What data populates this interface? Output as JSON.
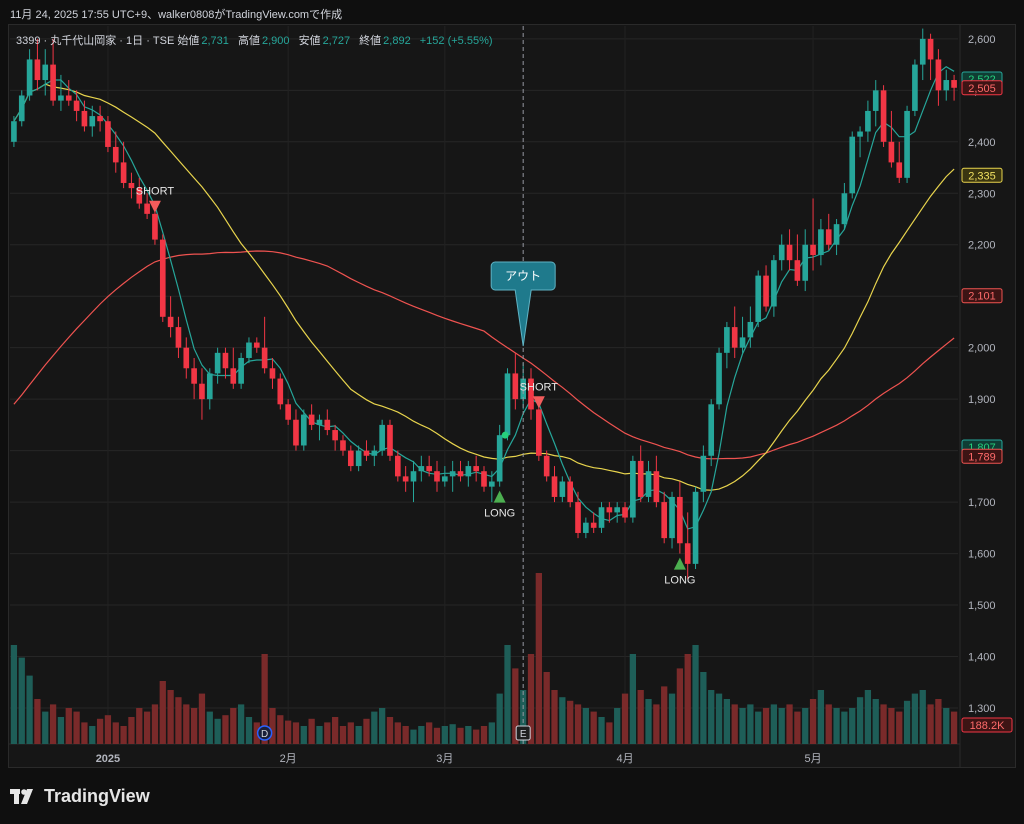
{
  "header": {
    "timestamp_line": "11月 24, 2025 17:55 UTC+9、walker0808がTradingView.comで作成"
  },
  "legend": {
    "symbol": "3399 · 丸千代山岡家 · 1日 · TSE",
    "open_label": "始値",
    "open": "2,731",
    "high_label": "高値",
    "high": "2,900",
    "low_label": "安値",
    "low": "2,727",
    "close_label": "終値",
    "close": "2,892",
    "change": "+152 (+5.55%)"
  },
  "brand": {
    "name": "TradingView"
  },
  "colors": {
    "up": "#26a69a",
    "down": "#f23645",
    "ma_fast": "#26a69a",
    "ma_mid": "#e8d44d",
    "ma_slow": "#ef5350",
    "vol_up": "#1e5e58",
    "vol_down": "#7a2a2a",
    "callout": "#1f7a8c"
  },
  "chart_data": {
    "type": "candlestick",
    "y_axis": {
      "range": [
        1230,
        2625
      ],
      "ticks": [
        1300,
        1400,
        1500,
        1600,
        1700,
        1800,
        1900,
        2000,
        2100,
        2200,
        2300,
        2400,
        2500,
        2600
      ],
      "tick_labels": [
        "1,300",
        "1,400",
        "1,500",
        "1,600",
        "1,700",
        "1,800",
        "1,900",
        "2,000",
        "2,100",
        "2,200",
        "2,300",
        "2,400",
        "2,500",
        "2,600"
      ]
    },
    "x_axis": {
      "labels": [
        {
          "label": "2025",
          "index": 12
        },
        {
          "label": "2月",
          "index": 35
        },
        {
          "label": "3月",
          "index": 55
        },
        {
          "label": "4月",
          "index": 78
        },
        {
          "label": "5月",
          "index": 102
        }
      ]
    },
    "candles": [
      [
        2400,
        2450,
        2390,
        2440
      ],
      [
        2440,
        2500,
        2430,
        2490
      ],
      [
        2490,
        2580,
        2480,
        2560
      ],
      [
        2560,
        2600,
        2500,
        2520
      ],
      [
        2520,
        2580,
        2490,
        2550
      ],
      [
        2550,
        2600,
        2470,
        2480
      ],
      [
        2480,
        2530,
        2460,
        2490
      ],
      [
        2490,
        2520,
        2470,
        2480
      ],
      [
        2480,
        2500,
        2440,
        2460
      ],
      [
        2460,
        2480,
        2420,
        2430
      ],
      [
        2430,
        2470,
        2410,
        2450
      ],
      [
        2450,
        2470,
        2420,
        2440
      ],
      [
        2440,
        2450,
        2380,
        2390
      ],
      [
        2390,
        2420,
        2340,
        2360
      ],
      [
        2360,
        2400,
        2310,
        2320
      ],
      [
        2320,
        2340,
        2290,
        2310
      ],
      [
        2310,
        2330,
        2270,
        2280
      ],
      [
        2280,
        2300,
        2250,
        2260
      ],
      [
        2260,
        2270,
        2200,
        2210
      ],
      [
        2210,
        2220,
        2050,
        2060
      ],
      [
        2060,
        2100,
        2020,
        2040
      ],
      [
        2040,
        2060,
        1980,
        2000
      ],
      [
        2000,
        2020,
        1940,
        1960
      ],
      [
        1960,
        1980,
        1900,
        1930
      ],
      [
        1930,
        1960,
        1860,
        1900
      ],
      [
        1900,
        1960,
        1880,
        1950
      ],
      [
        1950,
        2000,
        1930,
        1990
      ],
      [
        1990,
        2000,
        1940,
        1960
      ],
      [
        1960,
        2000,
        1920,
        1930
      ],
      [
        1930,
        1990,
        1920,
        1980
      ],
      [
        1980,
        2020,
        1970,
        2010
      ],
      [
        2010,
        2020,
        1990,
        2000
      ],
      [
        2000,
        2060,
        1950,
        1960
      ],
      [
        1960,
        1980,
        1920,
        1940
      ],
      [
        1940,
        1950,
        1880,
        1890
      ],
      [
        1890,
        1900,
        1850,
        1860
      ],
      [
        1860,
        1880,
        1800,
        1810
      ],
      [
        1810,
        1880,
        1800,
        1870
      ],
      [
        1870,
        1890,
        1840,
        1850
      ],
      [
        1850,
        1870,
        1820,
        1860
      ],
      [
        1860,
        1880,
        1830,
        1840
      ],
      [
        1840,
        1850,
        1800,
        1820
      ],
      [
        1820,
        1830,
        1790,
        1800
      ],
      [
        1800,
        1810,
        1760,
        1770
      ],
      [
        1770,
        1810,
        1760,
        1800
      ],
      [
        1800,
        1820,
        1780,
        1790
      ],
      [
        1790,
        1810,
        1770,
        1800
      ],
      [
        1800,
        1860,
        1790,
        1850
      ],
      [
        1850,
        1860,
        1780,
        1790
      ],
      [
        1790,
        1800,
        1740,
        1750
      ],
      [
        1750,
        1770,
        1720,
        1740
      ],
      [
        1740,
        1780,
        1700,
        1760
      ],
      [
        1760,
        1790,
        1740,
        1770
      ],
      [
        1770,
        1790,
        1750,
        1760
      ],
      [
        1760,
        1780,
        1720,
        1740
      ],
      [
        1740,
        1770,
        1730,
        1750
      ],
      [
        1750,
        1780,
        1720,
        1760
      ],
      [
        1760,
        1780,
        1740,
        1750
      ],
      [
        1750,
        1780,
        1730,
        1770
      ],
      [
        1770,
        1790,
        1740,
        1760
      ],
      [
        1760,
        1770,
        1720,
        1730
      ],
      [
        1730,
        1760,
        1700,
        1740
      ],
      [
        1740,
        1850,
        1730,
        1830
      ],
      [
        1830,
        1960,
        1820,
        1950
      ],
      [
        1950,
        1990,
        1880,
        1900
      ],
      [
        1900,
        1970,
        1880,
        1940
      ],
      [
        1940,
        1960,
        1860,
        1880
      ],
      [
        1880,
        1890,
        1780,
        1790
      ],
      [
        1790,
        1800,
        1740,
        1750
      ],
      [
        1750,
        1770,
        1700,
        1710
      ],
      [
        1710,
        1750,
        1700,
        1740
      ],
      [
        1740,
        1750,
        1690,
        1700
      ],
      [
        1700,
        1720,
        1630,
        1640
      ],
      [
        1640,
        1670,
        1630,
        1660
      ],
      [
        1660,
        1680,
        1640,
        1650
      ],
      [
        1650,
        1700,
        1640,
        1690
      ],
      [
        1690,
        1700,
        1660,
        1680
      ],
      [
        1680,
        1700,
        1660,
        1690
      ],
      [
        1690,
        1700,
        1660,
        1670
      ],
      [
        1670,
        1790,
        1660,
        1780
      ],
      [
        1780,
        1810,
        1700,
        1710
      ],
      [
        1710,
        1780,
        1700,
        1760
      ],
      [
        1760,
        1790,
        1690,
        1700
      ],
      [
        1700,
        1720,
        1620,
        1630
      ],
      [
        1630,
        1720,
        1610,
        1710
      ],
      [
        1710,
        1740,
        1600,
        1620
      ],
      [
        1620,
        1680,
        1550,
        1580
      ],
      [
        1580,
        1730,
        1570,
        1720
      ],
      [
        1720,
        1810,
        1700,
        1790
      ],
      [
        1790,
        1900,
        1770,
        1890
      ],
      [
        1890,
        2000,
        1880,
        1990
      ],
      [
        1990,
        2050,
        1960,
        2040
      ],
      [
        2040,
        2080,
        1980,
        2000
      ],
      [
        2000,
        2060,
        1990,
        2020
      ],
      [
        2020,
        2080,
        2000,
        2050
      ],
      [
        2050,
        2150,
        2040,
        2140
      ],
      [
        2140,
        2160,
        2070,
        2080
      ],
      [
        2080,
        2180,
        2060,
        2170
      ],
      [
        2170,
        2220,
        2150,
        2200
      ],
      [
        2200,
        2230,
        2150,
        2170
      ],
      [
        2170,
        2220,
        2120,
        2130
      ],
      [
        2130,
        2230,
        2110,
        2200
      ],
      [
        2200,
        2290,
        2150,
        2180
      ],
      [
        2180,
        2250,
        2160,
        2230
      ],
      [
        2230,
        2260,
        2190,
        2200
      ],
      [
        2200,
        2250,
        2180,
        2240
      ],
      [
        2240,
        2320,
        2230,
        2300
      ],
      [
        2300,
        2420,
        2290,
        2410
      ],
      [
        2410,
        2430,
        2370,
        2420
      ],
      [
        2420,
        2480,
        2400,
        2460
      ],
      [
        2460,
        2520,
        2430,
        2500
      ],
      [
        2500,
        2510,
        2390,
        2400
      ],
      [
        2400,
        2460,
        2350,
        2360
      ],
      [
        2360,
        2400,
        2320,
        2330
      ],
      [
        2330,
        2470,
        2320,
        2460
      ],
      [
        2460,
        2560,
        2450,
        2550
      ],
      [
        2550,
        2620,
        2520,
        2600
      ],
      [
        2600,
        2610,
        2520,
        2560
      ],
      [
        2560,
        2580,
        2470,
        2500
      ],
      [
        2500,
        2540,
        2480,
        2520
      ],
      [
        2520,
        2530,
        2480,
        2505
      ]
    ],
    "volume_heights": [
      0.55,
      0.48,
      0.38,
      0.25,
      0.18,
      0.22,
      0.15,
      0.2,
      0.18,
      0.12,
      0.1,
      0.14,
      0.16,
      0.12,
      0.1,
      0.15,
      0.2,
      0.18,
      0.22,
      0.35,
      0.3,
      0.26,
      0.22,
      0.2,
      0.28,
      0.18,
      0.14,
      0.16,
      0.2,
      0.22,
      0.15,
      0.12,
      0.5,
      0.2,
      0.16,
      0.13,
      0.12,
      0.1,
      0.14,
      0.1,
      0.12,
      0.15,
      0.1,
      0.12,
      0.1,
      0.14,
      0.18,
      0.2,
      0.15,
      0.12,
      0.1,
      0.08,
      0.1,
      0.12,
      0.09,
      0.1,
      0.11,
      0.09,
      0.1,
      0.08,
      0.1,
      0.12,
      0.28,
      0.55,
      0.42,
      0.3,
      0.5,
      0.95,
      0.4,
      0.3,
      0.26,
      0.24,
      0.22,
      0.2,
      0.18,
      0.15,
      0.12,
      0.2,
      0.28,
      0.5,
      0.3,
      0.25,
      0.22,
      0.32,
      0.28,
      0.42,
      0.5,
      0.55,
      0.4,
      0.3,
      0.28,
      0.25,
      0.22,
      0.2,
      0.22,
      0.18,
      0.2,
      0.22,
      0.2,
      0.22,
      0.18,
      0.2,
      0.25,
      0.3,
      0.22,
      0.2,
      0.18,
      0.2,
      0.26,
      0.3,
      0.25,
      0.22,
      0.2,
      0.18,
      0.24,
      0.28,
      0.3,
      0.22,
      0.25,
      0.2,
      0.18
    ],
    "volume_last_label": "188.2K",
    "price_tags": [
      {
        "value": 2522,
        "label": "2,522",
        "kind": "up_current"
      },
      {
        "value": 2505,
        "label": "2,505",
        "kind": "down_current"
      },
      {
        "value": 2335,
        "label": "2,335",
        "kind": "ma_mid"
      },
      {
        "value": 2101,
        "label": "2,101",
        "kind": "ma_slow"
      },
      {
        "value": 1807,
        "label": "1,807",
        "kind": "ma_fast"
      },
      {
        "value": 1789,
        "label": "1,789",
        "kind": "ma_slow"
      }
    ],
    "signals": [
      {
        "index": 18,
        "type": "short",
        "label": "SHORT"
      },
      {
        "index": 62,
        "type": "long",
        "label": "LONG"
      },
      {
        "index": 67,
        "type": "short",
        "label": "SHORT"
      },
      {
        "index": 85,
        "type": "long",
        "label": "LONG"
      }
    ],
    "callout": {
      "index": 65,
      "label": "アウト"
    },
    "cursor_index": 65,
    "badges": [
      {
        "index": 32,
        "label": "D"
      },
      {
        "index": 65,
        "label": "E"
      }
    ]
  }
}
